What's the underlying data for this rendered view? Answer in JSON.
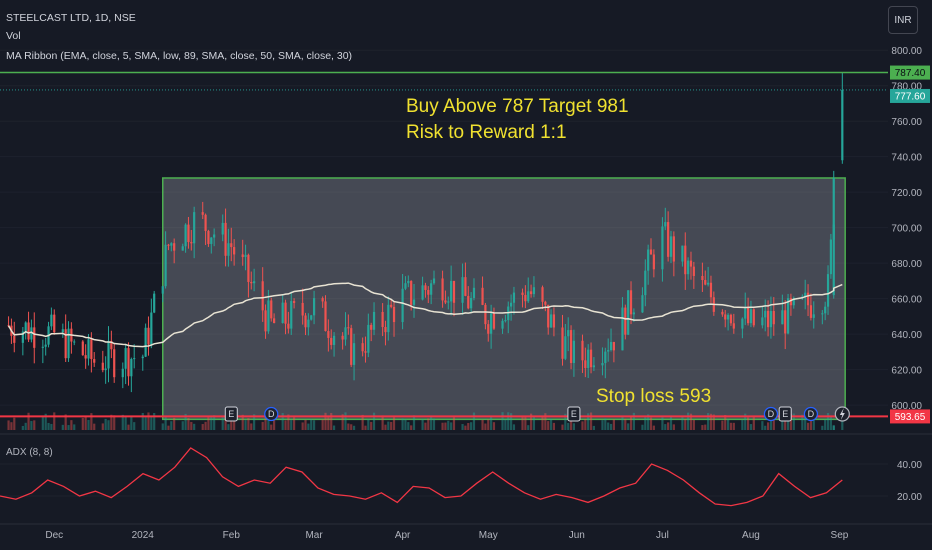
{
  "header": {
    "symbol": "STEELCAST LTD, 1D, NSE",
    "vol": "Vol",
    "ma_ribbon": "MA Ribbon (EMA, close, 5, SMA, low, 89, SMA, close, 50, SMA, close, 30)",
    "currency": "INR"
  },
  "annotations": {
    "buy_line1": "Buy Above 787 Target 981",
    "buy_line2": "Risk to Reward 1:1",
    "stop_loss": "Stop loss 593"
  },
  "price_tags": {
    "resistance": "787.40",
    "last": "777.60",
    "support": "593.65"
  },
  "colors": {
    "background": "#161a25",
    "up": "#26a69a",
    "down": "#ef5350",
    "box_border": "#4caf50",
    "annotation_text": "#f0e130",
    "support_line": "#f23645",
    "resistance_line": "#4caf50",
    "ma_line": "#e8e3d3",
    "adx_line": "#f23645"
  },
  "chart_data": [
    {
      "type": "candlestick",
      "title": "",
      "y_axis_ticks": [
        "800.00",
        "780.00",
        "760.00",
        "740.00",
        "720.00",
        "700.00",
        "680.00",
        "660.00",
        "640.00",
        "620.00",
        "600.00"
      ],
      "ylim": [
        586,
        808
      ],
      "x_ticks": [
        "Dec",
        "2024",
        "Feb",
        "Mar",
        "Apr",
        "May",
        "Jun",
        "Jul",
        "Aug",
        "Sep"
      ],
      "consolidation_box": {
        "price_top": 728,
        "price_bottom": 592,
        "start": "2024-01-08",
        "end": "2024-09-03"
      },
      "levels": {
        "resistance": 787.4,
        "last": 777.6,
        "support": 593.65
      },
      "events": [
        {
          "label": "E",
          "date": "2024-02-01"
        },
        {
          "label": "D",
          "date": "2024-02-15"
        },
        {
          "label": "E",
          "date": "2024-05-31"
        },
        {
          "label": "D",
          "date": "2024-08-08"
        },
        {
          "label": "E",
          "date": "2024-08-13"
        },
        {
          "label": "D",
          "date": "2024-08-22"
        }
      ],
      "series_summary": [
        {
          "date": "2023-11-15",
          "close": 645
        },
        {
          "date": "2023-12-01",
          "close": 640
        },
        {
          "date": "2023-12-15",
          "close": 625
        },
        {
          "date": "2024-01-01",
          "close": 628
        },
        {
          "date": "2024-01-10",
          "close": 690
        },
        {
          "date": "2024-01-20",
          "close": 705
        },
        {
          "date": "2024-02-01",
          "close": 690
        },
        {
          "date": "2024-02-15",
          "close": 645
        },
        {
          "date": "2024-03-01",
          "close": 655
        },
        {
          "date": "2024-03-15",
          "close": 630
        },
        {
          "date": "2024-04-01",
          "close": 660
        },
        {
          "date": "2024-04-15",
          "close": 670
        },
        {
          "date": "2024-05-01",
          "close": 650
        },
        {
          "date": "2024-05-15",
          "close": 665
        },
        {
          "date": "2024-06-01",
          "close": 625
        },
        {
          "date": "2024-06-15",
          "close": 640
        },
        {
          "date": "2024-07-01",
          "close": 695
        },
        {
          "date": "2024-07-15",
          "close": 665
        },
        {
          "date": "2024-08-01",
          "close": 645
        },
        {
          "date": "2024-08-15",
          "close": 650
        },
        {
          "date": "2024-08-28",
          "close": 665
        },
        {
          "date": "2024-09-02",
          "close": 777.6
        }
      ]
    },
    {
      "type": "line",
      "title": "ADX (8, 8)",
      "y_axis_ticks": [
        "40.00",
        "20.00"
      ],
      "ylim": [
        5,
        55
      ],
      "series": [
        {
          "values": [
            20,
            18,
            22,
            30,
            26,
            20,
            23,
            19,
            26,
            34,
            30,
            38,
            50,
            44,
            32,
            26,
            30,
            28,
            38,
            35,
            25,
            21,
            20,
            18,
            22,
            16,
            26,
            25,
            19,
            20,
            28,
            35,
            28,
            22,
            18,
            21,
            19,
            16,
            20,
            25,
            28,
            40,
            36,
            30,
            22,
            15,
            14,
            16,
            20,
            34,
            26,
            19,
            22,
            30
          ]
        }
      ]
    }
  ]
}
